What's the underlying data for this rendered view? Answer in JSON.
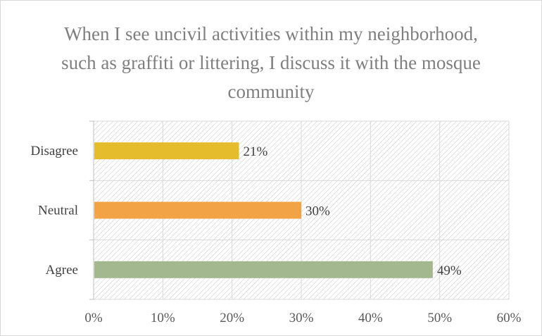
{
  "chart_data": {
    "type": "bar",
    "orientation": "horizontal",
    "title": "When I see uncivil activities within my neighborhood, such as graffiti or littering, I discuss it with the mosque community",
    "categories": [
      "Disagree",
      "Neutral",
      "Agree"
    ],
    "values": [
      21,
      30,
      49
    ],
    "value_labels": [
      "21%",
      "30%",
      "49%"
    ],
    "bar_colors": [
      "#e5bd2c",
      "#f2a345",
      "#a3b88f"
    ],
    "xlim": [
      0,
      60
    ],
    "x_ticks": [
      "0%",
      "10%",
      "20%",
      "30%",
      "40%",
      "50%",
      "60%"
    ],
    "grid": true,
    "plot_background": "hatched",
    "legend": "none"
  }
}
